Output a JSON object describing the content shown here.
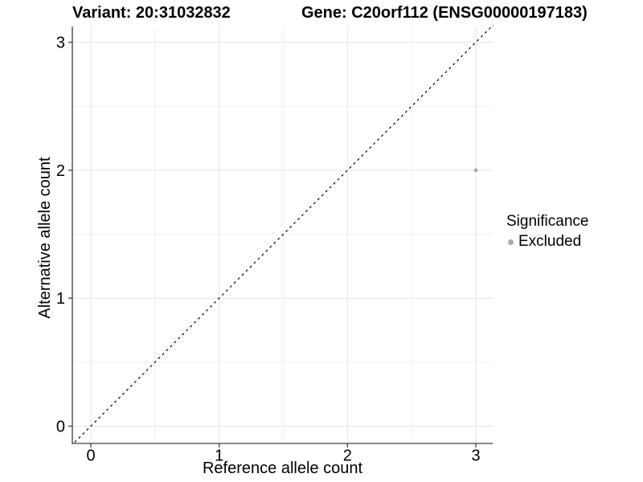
{
  "chart_data": {
    "type": "scatter",
    "title_left": "Variant: 20:31032832",
    "title_right": "Gene: C20orf112 (ENSG00000197183)",
    "xlabel": "Reference allele count",
    "ylabel": "Alternative allele count",
    "x_ticks": [
      0,
      1,
      2,
      3
    ],
    "y_ticks": [
      0,
      1,
      2,
      3
    ],
    "xlim": [
      -0.15,
      3.13
    ],
    "ylim": [
      -0.14,
      3.12
    ],
    "grid": {
      "major": true,
      "minor": true,
      "minor_interval": 0.5
    },
    "points": [
      {
        "x": 3,
        "y": 2,
        "series": "Excluded",
        "color": "#a9a9a9"
      }
    ],
    "reference_line": {
      "kind": "identity y=x",
      "style": "dashed",
      "color": "#000000"
    },
    "legend": {
      "title": "Significance",
      "position": "right",
      "entries": [
        {
          "label": "Excluded",
          "color": "#a9a9a9"
        }
      ]
    },
    "colors": {
      "grid_major": "#e3e3e3",
      "grid_minor": "#f0f0f0",
      "axis_line": "#404040",
      "text": "#000000",
      "background": "#ffffff"
    }
  }
}
